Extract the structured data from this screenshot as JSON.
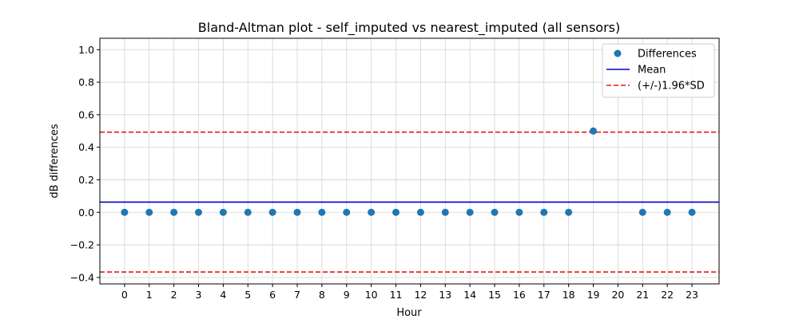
{
  "chart_data": {
    "type": "scatter",
    "title": "Bland-Altman plot - self_imputed vs nearest_imputed (all sensors)",
    "xlabel": "Hour",
    "ylabel": "dB differences",
    "xlim": [
      -1,
      24.1
    ],
    "ylim": [
      -0.44,
      1.07
    ],
    "x_ticks": [
      0,
      1,
      2,
      3,
      4,
      5,
      6,
      7,
      8,
      9,
      10,
      11,
      12,
      13,
      14,
      15,
      16,
      17,
      18,
      19,
      20,
      21,
      22,
      23
    ],
    "y_ticks": [
      -0.4,
      -0.2,
      0.0,
      0.2,
      0.4,
      0.6,
      0.8,
      1.0
    ],
    "y_tick_labels": [
      "−0.4",
      "−0.2",
      "0.0",
      "0.2",
      "0.4",
      "0.6",
      "0.8",
      "1.0"
    ],
    "grid": true,
    "legend_position": "top-right",
    "series": [
      {
        "name": "Differences",
        "kind": "scatter",
        "color": "#1f77b4",
        "points": [
          [
            0,
            0
          ],
          [
            1,
            0
          ],
          [
            2,
            0
          ],
          [
            3,
            0
          ],
          [
            4,
            0
          ],
          [
            5,
            0
          ],
          [
            6,
            0
          ],
          [
            7,
            0
          ],
          [
            8,
            0
          ],
          [
            9,
            0
          ],
          [
            10,
            0
          ],
          [
            11,
            0
          ],
          [
            12,
            0
          ],
          [
            13,
            0
          ],
          [
            14,
            0
          ],
          [
            15,
            0
          ],
          [
            16,
            0
          ],
          [
            17,
            0
          ],
          [
            18,
            0
          ],
          [
            19,
            0.5
          ],
          [
            21,
            0
          ],
          [
            22,
            0
          ],
          [
            23,
            0
          ]
        ]
      },
      {
        "name": "Mean",
        "kind": "hline",
        "y": 0.063,
        "color": "#0000cc",
        "dashed": false
      },
      {
        "name": "(+/-)1.96*SD",
        "kind": "hline",
        "y": 0.493,
        "color": "#e41a1c",
        "dashed": true
      },
      {
        "name": "",
        "kind": "hline",
        "y": -0.367,
        "color": "#e41a1c",
        "dashed": true
      }
    ],
    "legend": [
      {
        "label": "Differences",
        "marker": "dot",
        "color": "#1f77b4"
      },
      {
        "label": "Mean",
        "marker": "line",
        "color": "#0000cc"
      },
      {
        "label": "(+/-)1.96*SD",
        "marker": "dashed",
        "color": "#e41a1c"
      }
    ]
  }
}
